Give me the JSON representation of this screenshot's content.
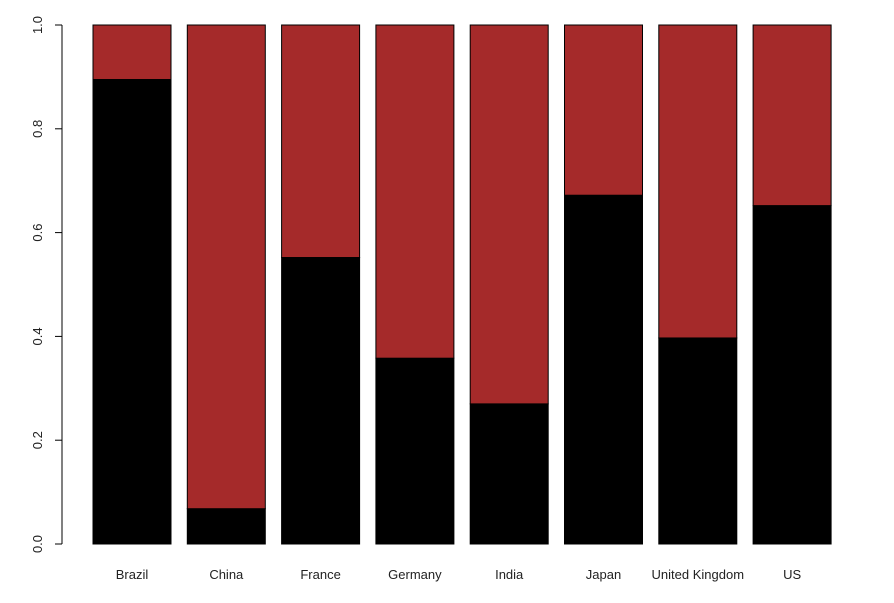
{
  "chart_data": {
    "type": "bar",
    "stacked": true,
    "normalized": true,
    "categories": [
      "Brazil",
      "China",
      "France",
      "Germany",
      "India",
      "Japan",
      "United Kingdom",
      "US"
    ],
    "series": [
      {
        "values": [
          0.895,
          0.068,
          0.552,
          0.358,
          0.27,
          0.672,
          0.397,
          0.652
        ],
        "color": "#000000"
      },
      {
        "values": [
          0.105,
          0.932,
          0.448,
          0.642,
          0.73,
          0.328,
          0.603,
          0.348
        ],
        "color": "#a52a2a"
      }
    ],
    "ylim": [
      0,
      1
    ],
    "yticks": [
      "0.0",
      "0.2",
      "0.4",
      "0.6",
      "0.8",
      "1.0"
    ],
    "title": "",
    "xlabel": "",
    "ylabel": "",
    "grid": false,
    "legend": "none"
  }
}
